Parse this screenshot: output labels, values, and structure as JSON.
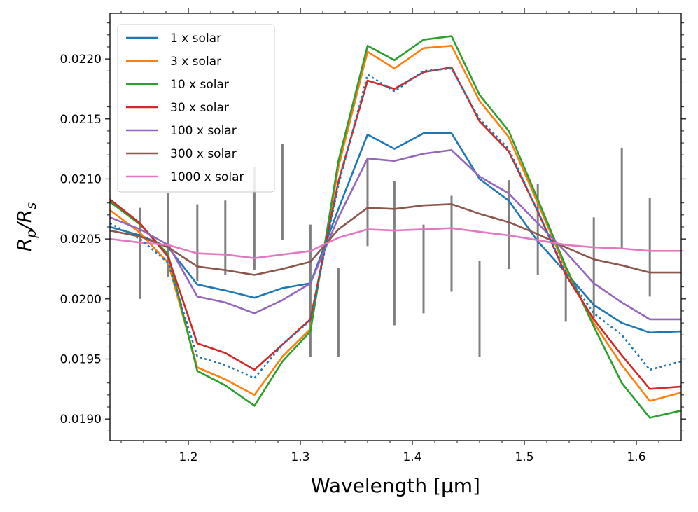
{
  "chart_data": {
    "type": "line",
    "title": "",
    "xlabel": "Wavelength [μm]",
    "ylabel_main": "R",
    "ylabel_sub_num": "p",
    "ylabel_sub_den": "s",
    "xlim": [
      1.13,
      1.64
    ],
    "ylim": [
      0.01882,
      0.02238
    ],
    "xticks": [
      1.2,
      1.3,
      1.4,
      1.5,
      1.6
    ],
    "xtick_labels": [
      "1.2",
      "1.3",
      "1.4",
      "1.5",
      "1.6"
    ],
    "yticks": [
      0.019,
      0.0195,
      0.02,
      0.0205,
      0.021,
      0.0215,
      0.022
    ],
    "ytick_labels": [
      "0.0190",
      "0.0195",
      "0.0200",
      "0.0205",
      "0.0210",
      "0.0215",
      "0.0220"
    ],
    "legend_position": "top-left",
    "x": [
      1.13,
      1.157,
      1.182,
      1.208,
      1.233,
      1.259,
      1.284,
      1.309,
      1.334,
      1.36,
      1.384,
      1.41,
      1.435,
      1.46,
      1.486,
      1.512,
      1.537,
      1.562,
      1.587,
      1.612,
      1.64
    ],
    "series": [
      {
        "name": "1 x solar",
        "color": "#1f77b4",
        "style": "solid",
        "values": [
          0.0206,
          0.02053,
          0.02043,
          0.02012,
          0.02007,
          0.02001,
          0.02009,
          0.02013,
          0.02075,
          0.02137,
          0.02125,
          0.02138,
          0.02138,
          0.021,
          0.02082,
          0.02048,
          0.02022,
          0.01995,
          0.0198,
          0.01972,
          0.01973
        ]
      },
      {
        "name": "3 x solar",
        "color": "#ff7f0e",
        "style": "solid",
        "values": [
          0.02074,
          0.02055,
          0.0203,
          0.01943,
          0.01933,
          0.0192,
          0.01952,
          0.01975,
          0.0211,
          0.02206,
          0.02192,
          0.02209,
          0.02211,
          0.02165,
          0.02135,
          0.0208,
          0.02025,
          0.0198,
          0.01945,
          0.01915,
          0.01922
        ]
      },
      {
        "name": "10 x solar",
        "color": "#2ca02c",
        "style": "solid",
        "values": [
          0.02081,
          0.02062,
          0.02037,
          0.0194,
          0.01928,
          0.01911,
          0.01948,
          0.01973,
          0.02115,
          0.02211,
          0.02199,
          0.02216,
          0.02219,
          0.0217,
          0.0214,
          0.02083,
          0.02027,
          0.01977,
          0.0193,
          0.01901,
          0.01907
        ]
      },
      {
        "name": "30 x solar",
        "color": "#d62728",
        "style": "solid",
        "values": [
          0.02083,
          0.02063,
          0.02035,
          0.01963,
          0.01955,
          0.01941,
          0.01962,
          0.01983,
          0.02098,
          0.02182,
          0.02175,
          0.02189,
          0.02193,
          0.02148,
          0.02123,
          0.02073,
          0.0202,
          0.01983,
          0.01953,
          0.01925,
          0.01927
        ]
      },
      {
        "name": "100 x solar",
        "color": "#9467bd",
        "style": "solid",
        "values": [
          0.02068,
          0.02058,
          0.02045,
          0.02002,
          0.01997,
          0.01988,
          0.01999,
          0.02013,
          0.02068,
          0.02117,
          0.02115,
          0.02121,
          0.02124,
          0.02102,
          0.02088,
          0.02063,
          0.02039,
          0.02013,
          0.01997,
          0.01983,
          0.01983
        ]
      },
      {
        "name": "300 x solar",
        "color": "#8c564b",
        "style": "solid",
        "values": [
          0.02057,
          0.02052,
          0.02043,
          0.02027,
          0.02024,
          0.0202,
          0.02025,
          0.02031,
          0.02058,
          0.02076,
          0.02075,
          0.02078,
          0.02079,
          0.02071,
          0.02064,
          0.02054,
          0.02043,
          0.02033,
          0.02028,
          0.02022,
          0.02022
        ]
      },
      {
        "name": "1000 x solar",
        "color": "#e377c2",
        "style": "solid",
        "values": [
          0.0205,
          0.02047,
          0.02045,
          0.02038,
          0.02037,
          0.02034,
          0.02037,
          0.0204,
          0.02051,
          0.02058,
          0.02057,
          0.02058,
          0.02059,
          0.02056,
          0.02053,
          0.02049,
          0.02045,
          0.02043,
          0.02042,
          0.0204,
          0.0204
        ]
      },
      {
        "name": "",
        "color": "#1f77b4",
        "style": "dotted",
        "values": [
          0.02063,
          0.0205,
          0.0203,
          0.01952,
          0.01945,
          0.01934,
          0.01962,
          0.01982,
          0.02095,
          0.02187,
          0.02173,
          0.0219,
          0.02192,
          0.0215,
          0.02125,
          0.02073,
          0.02022,
          0.01988,
          0.0197,
          0.01941,
          0.01948
        ]
      }
    ],
    "observations": {
      "x": [
        1.157,
        1.182,
        1.208,
        1.233,
        1.259,
        1.284,
        1.309,
        1.334,
        1.36,
        1.384,
        1.41,
        1.435,
        1.46,
        1.486,
        1.512,
        1.537,
        1.562,
        1.587,
        1.612
      ],
      "y": [
        0.02038,
        0.02053,
        0.02047,
        0.02051,
        0.02067,
        0.02089,
        0.02007,
        0.01989,
        0.0208,
        0.02038,
        0.02025,
        0.02046,
        0.01992,
        0.02062,
        0.02058,
        0.02003,
        0.02026,
        0.02084,
        0.02043
      ],
      "err": [
        0.00038,
        0.00035,
        0.00032,
        0.00031,
        0.00043,
        0.0004,
        0.00055,
        0.00037,
        0.00036,
        0.0006,
        0.00037,
        0.0004,
        0.0004,
        0.00037,
        0.00038,
        0.00022,
        0.00042,
        0.00042,
        0.00041
      ],
      "color": "#808080"
    }
  }
}
